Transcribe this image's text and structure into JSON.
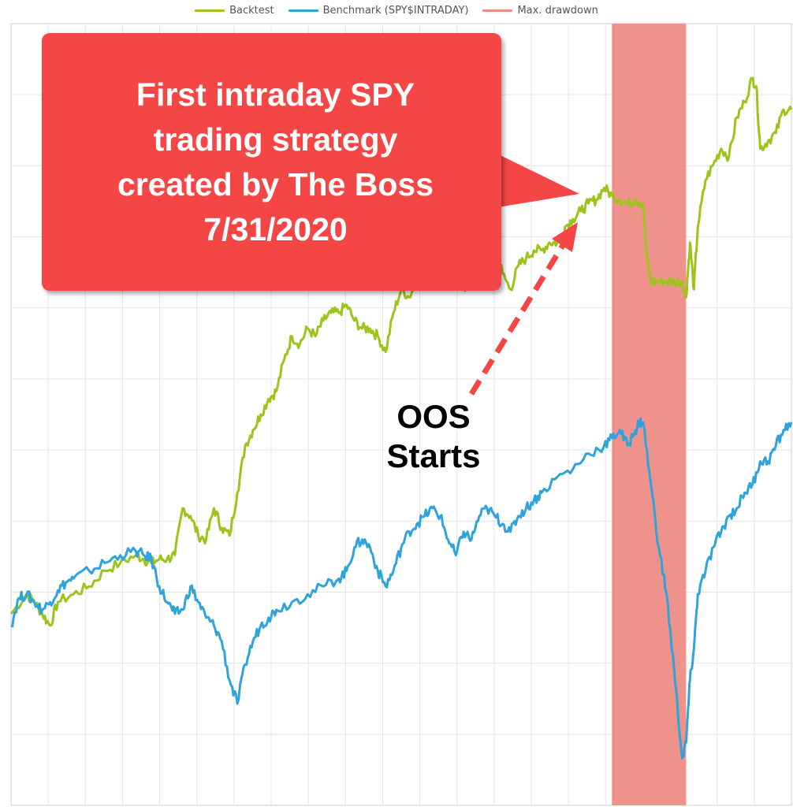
{
  "chart_data": {
    "type": "line",
    "title": "",
    "xlabel": "",
    "ylabel": "",
    "xlim": [
      0,
      100
    ],
    "ylim": [
      0,
      100
    ],
    "grid": true,
    "legend_position": "top-center",
    "series": [
      {
        "name": "Backtest",
        "color": "#9dc41a",
        "points": [
          [
            0,
            24.5
          ],
          [
            2,
            27
          ],
          [
            3,
            26
          ],
          [
            4,
            24.5
          ],
          [
            5,
            23
          ],
          [
            6,
            26
          ],
          [
            8,
            27
          ],
          [
            10,
            28
          ],
          [
            12,
            30
          ],
          [
            14,
            31
          ],
          [
            16,
            32
          ],
          [
            17,
            31.5
          ],
          [
            18,
            31
          ],
          [
            19,
            31.5
          ],
          [
            20,
            31.5
          ],
          [
            21,
            32
          ],
          [
            22,
            38
          ],
          [
            23,
            37
          ],
          [
            24,
            34.5
          ],
          [
            25,
            34
          ],
          [
            26,
            38
          ],
          [
            27,
            35.5
          ],
          [
            28,
            34.5
          ],
          [
            29,
            40
          ],
          [
            30,
            46
          ],
          [
            31,
            48
          ],
          [
            32,
            50
          ],
          [
            33,
            52
          ],
          [
            34,
            53
          ],
          [
            35,
            57
          ],
          [
            36,
            60
          ],
          [
            37,
            59
          ],
          [
            38,
            61
          ],
          [
            39,
            60
          ],
          [
            40,
            62
          ],
          [
            41,
            63
          ],
          [
            42,
            63
          ],
          [
            43,
            64
          ],
          [
            44,
            62
          ],
          [
            45,
            61
          ],
          [
            46,
            61
          ],
          [
            47,
            60
          ],
          [
            48,
            58
          ],
          [
            49,
            63
          ],
          [
            50,
            66
          ],
          [
            51,
            65
          ],
          [
            52,
            67
          ],
          [
            53,
            68
          ],
          [
            54,
            69
          ],
          [
            55,
            67
          ],
          [
            56,
            69
          ],
          [
            57,
            71
          ],
          [
            58,
            66
          ],
          [
            59,
            68
          ],
          [
            60,
            70
          ],
          [
            61,
            71
          ],
          [
            62,
            72
          ],
          [
            63,
            68
          ],
          [
            64,
            66
          ],
          [
            65,
            69
          ],
          [
            66,
            70
          ],
          [
            67,
            71
          ],
          [
            68,
            71
          ],
          [
            69,
            72
          ],
          [
            70,
            72
          ],
          [
            71,
            74
          ],
          [
            72,
            75
          ],
          [
            73,
            76
          ],
          [
            74,
            77
          ],
          [
            75,
            77.5
          ],
          [
            76,
            79
          ],
          [
            77,
            78
          ],
          [
            78,
            77.5
          ],
          [
            79,
            77
          ],
          [
            80,
            77.5
          ],
          [
            81,
            77
          ],
          [
            81.5,
            70
          ],
          [
            82,
            67
          ],
          [
            83,
            67
          ],
          [
            84,
            67
          ],
          [
            85,
            67
          ],
          [
            86,
            67
          ],
          [
            86.5,
            65
          ],
          [
            87,
            72
          ],
          [
            87.5,
            66
          ],
          [
            88,
            74
          ],
          [
            89,
            80
          ],
          [
            90,
            82
          ],
          [
            91,
            84
          ],
          [
            92,
            83
          ],
          [
            93,
            88
          ],
          [
            94,
            90
          ],
          [
            95,
            93
          ],
          [
            95.5,
            92
          ],
          [
            96,
            84
          ],
          [
            97,
            85
          ],
          [
            98,
            86
          ],
          [
            99,
            89
          ],
          [
            100,
            89
          ]
        ]
      },
      {
        "name": "Benchmark (SPY$INTRADAY)",
        "color": "#2ea3dc",
        "points": [
          [
            0,
            23
          ],
          [
            1,
            26.5
          ],
          [
            2,
            27
          ],
          [
            3,
            26
          ],
          [
            4,
            25
          ],
          [
            5,
            26
          ],
          [
            6,
            27.5
          ],
          [
            7,
            28.5
          ],
          [
            8,
            29
          ],
          [
            10,
            30
          ],
          [
            12,
            31
          ],
          [
            14,
            32
          ],
          [
            16,
            32.5
          ],
          [
            17,
            32
          ],
          [
            18,
            31.5
          ],
          [
            19,
            28
          ],
          [
            20,
            26
          ],
          [
            21,
            24.5
          ],
          [
            22,
            25
          ],
          [
            23,
            28
          ],
          [
            24,
            26
          ],
          [
            25,
            24
          ],
          [
            26,
            23
          ],
          [
            27,
            21
          ],
          [
            28,
            16
          ],
          [
            29,
            13
          ],
          [
            30,
            18
          ],
          [
            31,
            21
          ],
          [
            32,
            23
          ],
          [
            33,
            24
          ],
          [
            34,
            25
          ],
          [
            36,
            26
          ],
          [
            38,
            27
          ],
          [
            40,
            28
          ],
          [
            42,
            29
          ],
          [
            43,
            30
          ],
          [
            44,
            33
          ],
          [
            45,
            34
          ],
          [
            46,
            33
          ],
          [
            47,
            30
          ],
          [
            48,
            28
          ],
          [
            49,
            30
          ],
          [
            50,
            33
          ],
          [
            51,
            35
          ],
          [
            52,
            36
          ],
          [
            53,
            37
          ],
          [
            54,
            38
          ],
          [
            55,
            37
          ],
          [
            56,
            34
          ],
          [
            57,
            32
          ],
          [
            58,
            35
          ],
          [
            59,
            34
          ],
          [
            60,
            37
          ],
          [
            61,
            38
          ],
          [
            62,
            37
          ],
          [
            63,
            36
          ],
          [
            64,
            35
          ],
          [
            65,
            37
          ],
          [
            66,
            38
          ],
          [
            67,
            39
          ],
          [
            68,
            40
          ],
          [
            70,
            42
          ],
          [
            72,
            43
          ],
          [
            74,
            45
          ],
          [
            76,
            46
          ],
          [
            77,
            47
          ],
          [
            78,
            48
          ],
          [
            79,
            46
          ],
          [
            80,
            48
          ],
          [
            80.5,
            49
          ],
          [
            81,
            49
          ],
          [
            82,
            41
          ],
          [
            83,
            33
          ],
          [
            84,
            27
          ],
          [
            85,
            17
          ],
          [
            86,
            6
          ],
          [
            86.5,
            8
          ],
          [
            87,
            16
          ],
          [
            87.5,
            20
          ],
          [
            88,
            27
          ],
          [
            89,
            30
          ],
          [
            90,
            33
          ],
          [
            91,
            35
          ],
          [
            92,
            37
          ],
          [
            93,
            38
          ],
          [
            94,
            40
          ],
          [
            95,
            41
          ],
          [
            96,
            44
          ],
          [
            97,
            44
          ],
          [
            98,
            46
          ],
          [
            99,
            48
          ],
          [
            100,
            49
          ]
        ]
      }
    ],
    "drawdown": {
      "name": "Max. drawdown",
      "color": "#ef8c86",
      "x_start": 77,
      "x_end": 86.5
    },
    "annotations": [
      {
        "text": "First intraday SPY trading strategy created by The Boss 7/31/2020"
      },
      {
        "text": "OOS\nStarts"
      }
    ]
  }
}
